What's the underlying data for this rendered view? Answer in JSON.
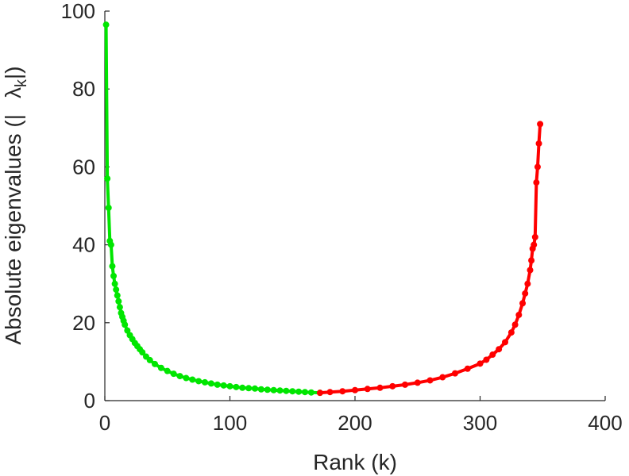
{
  "chart_data": {
    "type": "line",
    "xlabel": "Rank (k)",
    "ylabel": {
      "prefix": "Absolute eigenvalues (|",
      "symbol": "λ",
      "subscript": "k",
      "suffix": "|)"
    },
    "xlim": [
      0,
      400
    ],
    "ylim": [
      0,
      100
    ],
    "xticks": [
      "0",
      "100",
      "200",
      "300",
      "400"
    ],
    "yticks": [
      "0",
      "20",
      "40",
      "60",
      "80",
      "100"
    ],
    "grid": false,
    "legend": "none",
    "series": [
      {
        "color": "#00e600",
        "x": [
          1,
          2,
          3,
          4,
          5,
          6,
          7,
          8,
          9,
          10,
          11,
          12,
          13,
          14,
          15,
          16,
          18,
          20,
          22,
          24,
          26,
          28,
          30,
          33,
          36,
          40,
          45,
          50,
          55,
          60,
          65,
          70,
          75,
          80,
          85,
          90,
          95,
          100,
          105,
          110,
          115,
          120,
          125,
          130,
          135,
          140,
          145,
          150,
          155,
          160,
          165,
          172
        ],
        "y": [
          96.5,
          57.0,
          49.5,
          41.0,
          40.0,
          34.5,
          32.0,
          30.0,
          28.5,
          27.0,
          25.5,
          24.0,
          22.5,
          21.5,
          20.5,
          19.5,
          18.0,
          16.8,
          15.8,
          14.8,
          14.0,
          13.2,
          12.4,
          11.3,
          10.4,
          9.4,
          8.4,
          7.6,
          6.9,
          6.3,
          5.8,
          5.4,
          5.0,
          4.7,
          4.4,
          4.1,
          3.9,
          3.7,
          3.5,
          3.3,
          3.2,
          3.1,
          2.9,
          2.8,
          2.7,
          2.6,
          2.5,
          2.4,
          2.3,
          2.2,
          2.1,
          2.0
        ]
      },
      {
        "color": "#ff0000",
        "x": [
          172,
          180,
          190,
          200,
          210,
          220,
          230,
          240,
          250,
          260,
          270,
          280,
          290,
          300,
          305,
          310,
          315,
          320,
          325,
          328,
          331,
          334,
          336,
          338,
          340,
          341,
          342,
          343,
          344,
          345,
          346,
          347,
          348
        ],
        "y": [
          2.0,
          2.2,
          2.4,
          2.7,
          3.0,
          3.3,
          3.7,
          4.1,
          4.6,
          5.2,
          6.0,
          7.0,
          8.2,
          9.5,
          10.5,
          11.8,
          13.2,
          15.0,
          17.5,
          19.5,
          22.0,
          25.0,
          27.5,
          30.0,
          33.5,
          36.0,
          39.0,
          40.0,
          42.0,
          56.0,
          60.0,
          66.0,
          71.0
        ]
      }
    ]
  }
}
